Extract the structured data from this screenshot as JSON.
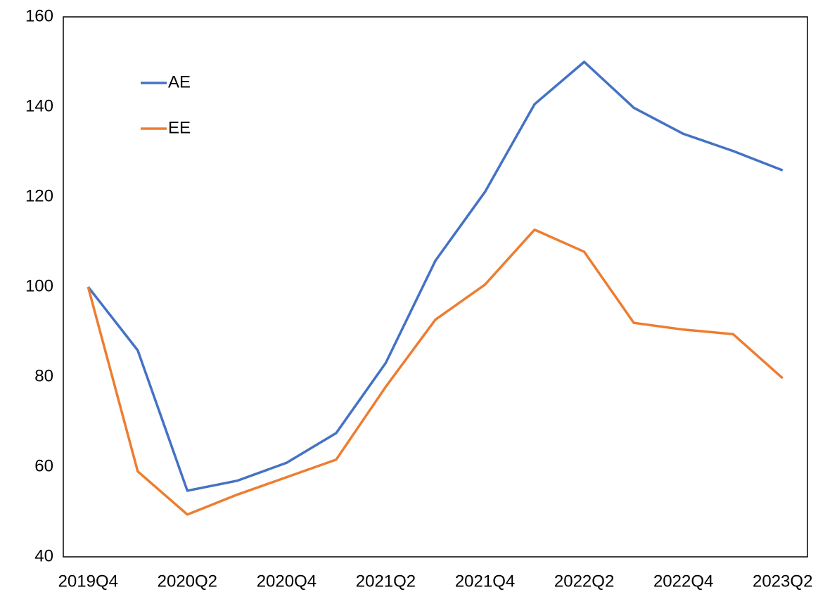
{
  "chart_data": {
    "type": "line",
    "categories": [
      "2019Q4",
      null,
      "2020Q2",
      null,
      "2020Q4",
      null,
      "2021Q2",
      null,
      "2021Q4",
      null,
      "2022Q2",
      null,
      "2022Q4",
      null,
      "2023Q2"
    ],
    "series": [
      {
        "name": "AE",
        "color": "#4472c4",
        "values": [
          100,
          85.9,
          54.7,
          56.9,
          60.9,
          67.5,
          83.1,
          105.8,
          121.1,
          140.6,
          150,
          139.8,
          134,
          130.2,
          125.9
        ]
      },
      {
        "name": "EE",
        "color": "#ed7d31",
        "values": [
          100,
          59,
          49.4,
          53.8,
          57.7,
          61.6,
          77.8,
          92.7,
          100.5,
          112.7,
          107.8,
          92,
          90.5,
          89.5,
          79.7
        ]
      }
    ],
    "ylim": [
      40,
      160
    ],
    "yticks": [
      40,
      60,
      80,
      100,
      120,
      140,
      160
    ],
    "grid": false,
    "legend": "upper-left"
  }
}
